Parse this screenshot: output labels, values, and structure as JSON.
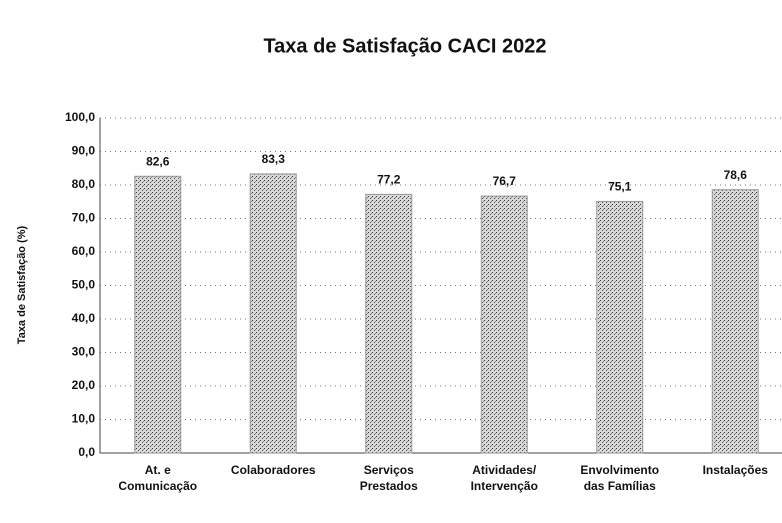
{
  "chart_data": {
    "type": "bar",
    "title": "Taxa de Satisfação CACI 2022",
    "y_label": "Taxa de Satisfação (%)",
    "categories": [
      "At. e Comunicação",
      "Colaboradores",
      "Serviços Prestados",
      "Atividades/ Intervenção",
      "Envolvimento das Famílias",
      "Instalações"
    ],
    "values": [
      82.6,
      83.3,
      77.2,
      76.7,
      75.1,
      78.6
    ],
    "value_labels": [
      "82,6",
      "83,3",
      "77,2",
      "76,7",
      "75,1",
      "78,6"
    ],
    "color": "#9a9a9a",
    "ylim": [
      0,
      100
    ],
    "yticks": [
      {
        "value": 0,
        "label": "0,0"
      },
      {
        "value": 10,
        "label": "10,0"
      },
      {
        "value": 20,
        "label": "20,0"
      },
      {
        "value": 30,
        "label": "30,0"
      },
      {
        "value": 40,
        "label": "40,0"
      },
      {
        "value": 50,
        "label": "50,0"
      },
      {
        "value": 60,
        "label": "60,0"
      },
      {
        "value": 70,
        "label": "70,0"
      },
      {
        "value": 80,
        "label": "80,0"
      },
      {
        "value": 90,
        "label": "90,0"
      },
      {
        "value": 100,
        "label": "100,0"
      }
    ],
    "grid": true
  }
}
